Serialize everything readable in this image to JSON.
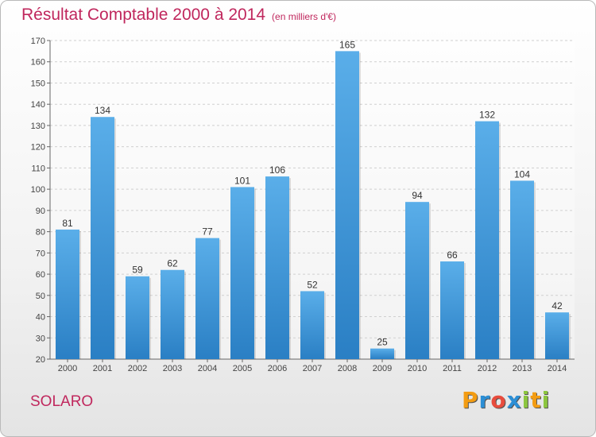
{
  "header": {
    "title": "Résultat Comptable 2000 à 2014",
    "subtitle": "(en milliers d'€)"
  },
  "commune": "SOLARO",
  "logo": {
    "text": "Proxiti",
    "letters": [
      {
        "ch": "P",
        "color": "#f39c12"
      },
      {
        "ch": "r",
        "color": "#2c8fd6"
      },
      {
        "ch": "o",
        "color": "#e84c3d"
      },
      {
        "ch": "x",
        "color": "#2c8fd6"
      },
      {
        "ch": "i",
        "color": "#8cc63f"
      },
      {
        "ch": "t",
        "color": "#f39c12"
      },
      {
        "ch": "i",
        "color": "#8cc63f"
      }
    ]
  },
  "colors": {
    "bar_top": "#5aaee9",
    "bar_bottom": "#2a7fc4",
    "title": "#c0275d"
  },
  "chart_data": {
    "type": "bar",
    "title": "Résultat Comptable 2000 à 2014",
    "subtitle": "(en milliers d'€)",
    "xlabel": "",
    "ylabel": "",
    "categories": [
      "2000",
      "2001",
      "2002",
      "2003",
      "2004",
      "2005",
      "2006",
      "2007",
      "2008",
      "2009",
      "2010",
      "2011",
      "2012",
      "2013",
      "2014"
    ],
    "values": [
      81,
      134,
      59,
      62,
      77,
      101,
      106,
      52,
      165,
      25,
      94,
      66,
      132,
      104,
      42
    ],
    "ylim": [
      20,
      170
    ],
    "yticks": [
      20,
      30,
      40,
      50,
      60,
      70,
      80,
      90,
      100,
      110,
      120,
      130,
      140,
      150,
      160,
      170
    ],
    "grid": true,
    "legend": "none"
  }
}
